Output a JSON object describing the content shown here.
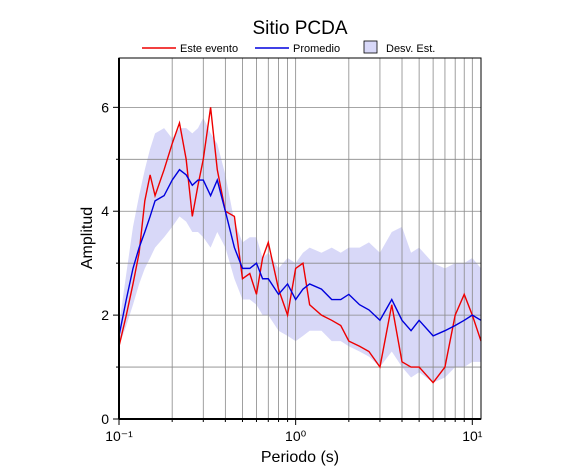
{
  "chart_data": {
    "type": "line",
    "title": "Sitio PCDA",
    "x_label": "Periodo (s)",
    "y_label": "Amplitud",
    "x_scale": "log",
    "grid": true,
    "xlim": [
      0.1,
      11.2
    ],
    "ylim": [
      0,
      6.95
    ],
    "xticks": [
      {
        "value": 0.1,
        "label": "10⁻¹"
      },
      {
        "value": 1,
        "label": "10⁰"
      },
      {
        "value": 10,
        "label": "10¹"
      }
    ],
    "xticks_minor": [
      0.2,
      0.3,
      0.4,
      0.5,
      0.6,
      0.7,
      0.8,
      0.9,
      2,
      3,
      4,
      5,
      6,
      7,
      8,
      9
    ],
    "yticks": [
      0,
      2,
      4,
      6
    ],
    "yticks_minor": [
      1,
      3,
      5
    ],
    "x": [
      0.1,
      0.11,
      0.12,
      0.13,
      0.14,
      0.15,
      0.16,
      0.18,
      0.2,
      0.22,
      0.24,
      0.26,
      0.28,
      0.3,
      0.33,
      0.36,
      0.4,
      0.45,
      0.5,
      0.55,
      0.6,
      0.65,
      0.7,
      0.8,
      0.9,
      1.0,
      1.1,
      1.2,
      1.4,
      1.6,
      1.8,
      2.0,
      2.3,
      2.6,
      3.0,
      3.5,
      4.0,
      4.5,
      5.0,
      6.0,
      7.0,
      8.0,
      9.0,
      10,
      11.2
    ],
    "series": [
      {
        "name": "Este evento",
        "color": "#ee0000",
        "values": [
          1.4,
          2.0,
          2.6,
          3.2,
          4.2,
          4.7,
          4.3,
          4.8,
          5.3,
          5.7,
          5.0,
          3.9,
          4.5,
          5.0,
          6.0,
          4.8,
          4.0,
          3.9,
          2.7,
          2.8,
          2.4,
          3.1,
          3.4,
          2.5,
          2.0,
          2.9,
          3.0,
          2.2,
          2.0,
          1.9,
          1.8,
          1.5,
          1.4,
          1.3,
          1.0,
          2.2,
          1.1,
          1.0,
          1.0,
          0.7,
          1.0,
          2.0,
          2.4,
          2.0,
          1.5
        ]
      },
      {
        "name": "Promedio",
        "color": "#0000dd",
        "values": [
          1.6,
          2.3,
          2.9,
          3.3,
          3.6,
          3.9,
          4.2,
          4.3,
          4.6,
          4.8,
          4.7,
          4.5,
          4.6,
          4.6,
          4.3,
          4.6,
          4.0,
          3.3,
          2.9,
          2.9,
          3.0,
          2.7,
          2.7,
          2.4,
          2.6,
          2.3,
          2.5,
          2.6,
          2.5,
          2.3,
          2.3,
          2.4,
          2.2,
          2.1,
          1.9,
          2.3,
          1.9,
          1.7,
          1.9,
          1.6,
          1.7,
          1.8,
          1.9,
          2.0,
          1.9
        ]
      },
      {
        "name": "Desv. Est.",
        "color": "#d8d8f8",
        "upper": [
          1.8,
          2.8,
          3.7,
          4.3,
          4.8,
          5.2,
          5.5,
          5.6,
          5.4,
          5.6,
          5.6,
          5.5,
          5.6,
          5.8,
          5.5,
          5.3,
          4.7,
          3.8,
          3.4,
          3.5,
          3.5,
          3.1,
          3.2,
          2.9,
          3.1,
          3.0,
          3.2,
          3.3,
          3.2,
          3.3,
          3.2,
          3.3,
          3.3,
          3.4,
          3.2,
          3.6,
          3.7,
          3.2,
          3.3,
          3.0,
          2.9,
          3.0,
          3.0,
          3.1,
          2.9
        ],
        "lower": [
          1.4,
          1.8,
          2.2,
          2.6,
          2.9,
          3.1,
          3.3,
          3.5,
          3.7,
          3.9,
          3.8,
          3.6,
          3.6,
          3.5,
          3.3,
          3.6,
          3.3,
          2.7,
          2.3,
          2.3,
          2.2,
          2.0,
          2.0,
          1.7,
          1.6,
          1.5,
          1.6,
          1.7,
          1.7,
          1.5,
          1.5,
          1.4,
          1.3,
          1.2,
          1.0,
          1.3,
          1.0,
          0.8,
          0.9,
          0.7,
          0.8,
          1.0,
          1.0,
          1.1,
          1.1
        ]
      }
    ]
  }
}
